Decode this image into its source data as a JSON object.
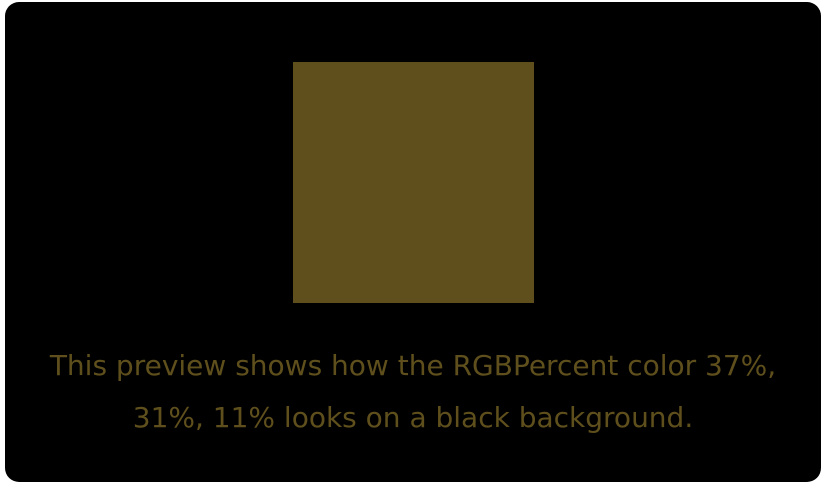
{
  "preview": {
    "swatch_color": "#5e4f1c",
    "text_color": "#5e4f1c",
    "background_color": "#000000",
    "caption": "This preview shows how the RGBPercent color 37%, 31%, 11% looks on a black background."
  }
}
